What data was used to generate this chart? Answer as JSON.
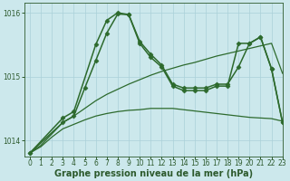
{
  "xlabel": "Graphe pression niveau de la mer (hPa)",
  "ylabel": "",
  "background_color": "#cce8ec",
  "grid_color": "#aad0d8",
  "line_color": "#2d6a2d",
  "xlim": [
    -0.5,
    23
  ],
  "ylim": [
    1013.75,
    1016.15
  ],
  "yticks": [
    1014,
    1015,
    1016
  ],
  "xticks": [
    0,
    1,
    2,
    3,
    4,
    5,
    6,
    7,
    8,
    9,
    10,
    11,
    12,
    13,
    14,
    15,
    16,
    17,
    18,
    19,
    20,
    21,
    22,
    23
  ],
  "lines": [
    {
      "x": [
        0,
        1,
        2,
        3,
        4,
        5,
        6,
        7,
        8,
        9,
        10,
        11,
        12,
        13,
        14,
        15,
        16,
        17,
        18,
        19,
        20,
        21,
        22,
        23
      ],
      "y": [
        1013.8,
        1013.9,
        1014.05,
        1014.18,
        1014.25,
        1014.32,
        1014.38,
        1014.42,
        1014.45,
        1014.47,
        1014.48,
        1014.5,
        1014.5,
        1014.5,
        1014.48,
        1014.46,
        1014.44,
        1014.42,
        1014.4,
        1014.38,
        1014.36,
        1014.35,
        1014.34,
        1014.3
      ],
      "marker": null,
      "linewidth": 0.9
    },
    {
      "x": [
        0,
        1,
        2,
        3,
        4,
        5,
        6,
        7,
        8,
        9,
        10,
        11,
        12,
        13,
        14,
        15,
        16,
        17,
        18,
        19,
        20,
        21,
        22,
        23
      ],
      "y": [
        1013.8,
        1013.92,
        1014.1,
        1014.28,
        1014.38,
        1014.5,
        1014.62,
        1014.72,
        1014.8,
        1014.88,
        1014.95,
        1015.02,
        1015.08,
        1015.13,
        1015.18,
        1015.22,
        1015.27,
        1015.32,
        1015.36,
        1015.4,
        1015.44,
        1015.48,
        1015.52,
        1015.05
      ],
      "marker": null,
      "linewidth": 0.9
    },
    {
      "x": [
        0,
        3,
        4,
        5,
        6,
        7,
        8,
        9,
        10,
        11,
        12,
        13,
        14,
        15,
        16,
        17,
        18,
        19,
        20,
        21,
        22,
        23
      ],
      "y": [
        1013.8,
        1014.28,
        1014.38,
        1014.82,
        1015.25,
        1015.68,
        1015.98,
        1015.97,
        1015.55,
        1015.35,
        1015.18,
        1014.88,
        1014.82,
        1014.82,
        1014.82,
        1014.88,
        1014.88,
        1015.15,
        1015.52,
        1015.62,
        1015.12,
        1014.28
      ],
      "marker": "D",
      "markersize": 2.5,
      "linewidth": 1.1
    },
    {
      "x": [
        0,
        3,
        4,
        6,
        7,
        8,
        9,
        10,
        11,
        12,
        13,
        14,
        15,
        16,
        17,
        18,
        19,
        20,
        21,
        22,
        23
      ],
      "y": [
        1013.8,
        1014.35,
        1014.45,
        1015.5,
        1015.88,
        1016.0,
        1015.97,
        1015.52,
        1015.3,
        1015.15,
        1014.85,
        1014.78,
        1014.78,
        1014.78,
        1014.85,
        1014.85,
        1015.52,
        1015.52,
        1015.62,
        1015.12,
        1014.28
      ],
      "marker": "D",
      "markersize": 2.5,
      "linewidth": 1.1
    }
  ],
  "font_color": "#2d5a2d",
  "tick_fontsize": 5.5,
  "label_fontsize": 7
}
